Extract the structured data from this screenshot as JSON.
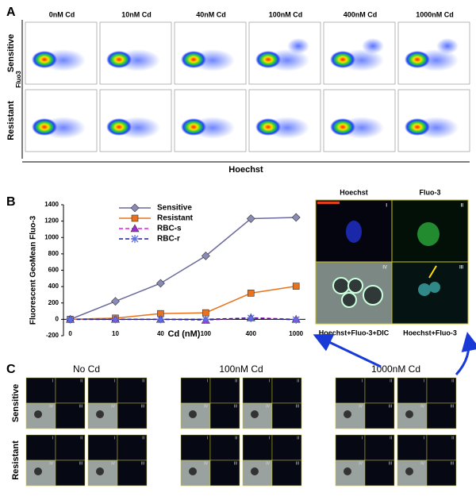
{
  "panel_labels": [
    "A",
    "B",
    "C"
  ],
  "panel_a": {
    "conditions": [
      "0nM Cd",
      "10nM Cd",
      "40nM Cd",
      "100nM Cd",
      "400nM Cd",
      "1000nM Cd"
    ],
    "rows": [
      "Sensitive",
      "Resistant"
    ],
    "y_label": "Fluo3",
    "x_label": "Hoechst"
  },
  "chart_data": {
    "type": "line",
    "x_label": "Cd (nM)",
    "y_label": "Fluorescent GeoMean Fluo-3",
    "categories": [
      "0",
      "10",
      "40",
      "100",
      "400",
      "1000"
    ],
    "series": [
      {
        "name": "Sensitive",
        "color": "#6a6a9c",
        "marker": "diamond",
        "dash": false,
        "values": [
          0,
          220,
          440,
          775,
          1230,
          1245
        ]
      },
      {
        "name": "Resistant",
        "color": "#e8731c",
        "marker": "square",
        "dash": false,
        "values": [
          0,
          15,
          70,
          80,
          320,
          405
        ]
      },
      {
        "name": "RBC-s",
        "color": "#e020e0",
        "marker": "triangle",
        "dash": true,
        "values": [
          0,
          0,
          0,
          -10,
          20,
          0
        ]
      },
      {
        "name": "RBC-r",
        "color": "#1f1f8f",
        "marker": "asterisk",
        "dash": true,
        "values": [
          0,
          0,
          0,
          0,
          15,
          -5
        ]
      }
    ],
    "ylim": [
      -200,
      1400
    ],
    "yticks": [
      -200,
      0,
      200,
      400,
      600,
      800,
      1000,
      1200,
      1400
    ],
    "legend": "upper center"
  },
  "micrograph": {
    "top_labels": [
      "Hoechst",
      "Fluo-3"
    ],
    "bottom_labels": [
      "Hoechst+Fluo-3+DIC",
      "Hoechst+Fluo-3"
    ],
    "quadrants": [
      "I",
      "II",
      "IV",
      "III"
    ]
  },
  "panel_c": {
    "conditions": [
      "No Cd",
      "100nM Cd",
      "1000nM Cd"
    ],
    "rows": [
      "Sensitive",
      "Resistant"
    ]
  }
}
